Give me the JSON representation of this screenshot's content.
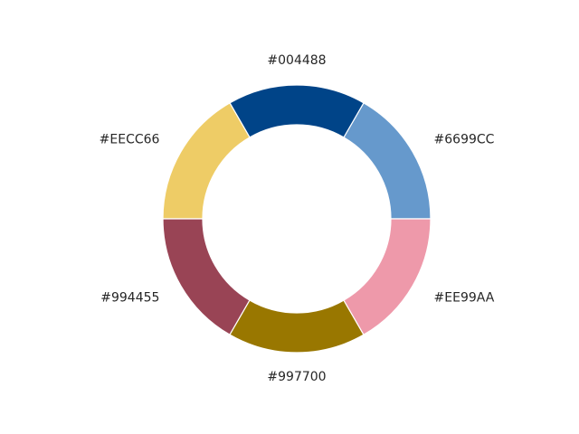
{
  "chart_data": {
    "type": "pie",
    "donut": true,
    "start_angle_deg": 0,
    "direction": "counterclockwise",
    "slices": [
      {
        "label": "#6699CC",
        "value": 1,
        "color": "#6699CC"
      },
      {
        "label": "#004488",
        "value": 1,
        "color": "#004488"
      },
      {
        "label": "#EECC66",
        "value": 1,
        "color": "#EECC66"
      },
      {
        "label": "#994455",
        "value": 1,
        "color": "#994455"
      },
      {
        "label": "#997700",
        "value": 1,
        "color": "#997700"
      },
      {
        "label": "#EE99AA",
        "value": 1,
        "color": "#EE99AA"
      }
    ],
    "title": "",
    "legend": "none"
  }
}
